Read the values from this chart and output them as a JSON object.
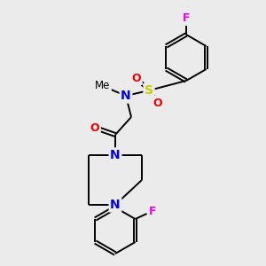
{
  "bg_color": "#ebebeb",
  "atom_colors": {
    "C": "#000000",
    "N": "#0000ee",
    "O": "#ee0000",
    "S": "#cccc00",
    "F": "#ee00ee"
  },
  "bond_color": "#000000",
  "bond_width": 1.4,
  "figsize": [
    3.0,
    3.0
  ],
  "dpi": 100
}
